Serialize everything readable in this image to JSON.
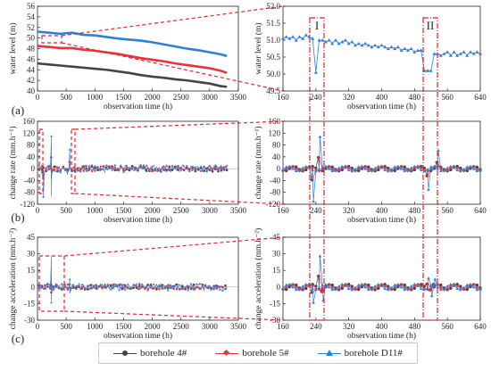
{
  "colors": {
    "borehole4": "#444444",
    "borehole5": "#e8323c",
    "boreholeD11": "#2f7fd8",
    "highlight": "#e0262c"
  },
  "legend": [
    {
      "label": "borehole 4#",
      "color": "#444444",
      "marker": "circle"
    },
    {
      "label": "borehole 5#",
      "color": "#e8323c",
      "marker": "diamond"
    },
    {
      "label": "borehole D11#",
      "color": "#2f7fd8",
      "marker": "triangle"
    }
  ],
  "panel_labels": [
    "(a)",
    "(b)",
    "(c)"
  ],
  "region_labels": [
    "I",
    "II"
  ],
  "chart_data": [
    {
      "id": "a-left",
      "type": "line",
      "xlabel": "observation time (h)",
      "ylabel": "water level (m)",
      "xlim": [
        0,
        3500
      ],
      "ylim": [
        40,
        56
      ],
      "xticks": [
        0,
        500,
        1000,
        1500,
        2000,
        2500,
        3000,
        3500
      ],
      "yticks": [
        40,
        42,
        44,
        46,
        48,
        50,
        52,
        54,
        56
      ],
      "series": [
        {
          "name": "borehole D11#",
          "x": [
            0,
            200,
            400,
            600,
            800,
            1000,
            1200,
            1400,
            1600,
            1800,
            2000,
            2200,
            2400,
            2600,
            2800,
            3000,
            3200,
            3300
          ],
          "values": [
            51.2,
            51.0,
            50.8,
            51.0,
            50.6,
            50.5,
            50.2,
            49.9,
            49.7,
            49.5,
            49.2,
            48.8,
            48.4,
            48.0,
            47.7,
            47.3,
            46.9,
            46.6
          ]
        },
        {
          "name": "borehole 5#",
          "x": [
            0,
            200,
            400,
            600,
            800,
            1000,
            1200,
            1400,
            1600,
            1800,
            2000,
            2200,
            2400,
            2600,
            2800,
            3000,
            3200,
            3300
          ],
          "values": [
            48.5,
            48.3,
            48.1,
            48.1,
            47.8,
            47.6,
            47.3,
            47.0,
            46.6,
            46.2,
            45.9,
            45.6,
            45.2,
            44.9,
            44.6,
            44.3,
            43.8,
            43.4
          ]
        },
        {
          "name": "borehole 4#",
          "x": [
            0,
            200,
            400,
            600,
            800,
            1000,
            1200,
            1400,
            1600,
            1800,
            2000,
            2200,
            2400,
            2600,
            2800,
            3000,
            3200,
            3300
          ],
          "values": [
            45.2,
            45.0,
            44.8,
            44.6,
            44.4,
            44.2,
            44.0,
            43.7,
            43.4,
            43.0,
            42.7,
            42.5,
            42.2,
            42.0,
            41.7,
            41.4,
            40.9,
            40.8
          ]
        }
      ]
    },
    {
      "id": "a-right",
      "type": "line",
      "xlabel": "observation time (h)",
      "ylabel": "water level (m)",
      "xlim": [
        160,
        640
      ],
      "ylim": [
        49.5,
        52.0
      ],
      "xticks": [
        160,
        240,
        320,
        400,
        480,
        560,
        640
      ],
      "yticks": [
        49.5,
        50.0,
        50.5,
        51.0,
        51.5,
        52.0
      ],
      "series": [
        {
          "name": "borehole D11#",
          "x": [
            160,
            168,
            176,
            184,
            192,
            200,
            208,
            216,
            224,
            232,
            240,
            248,
            256,
            264,
            272,
            280,
            288,
            296,
            304,
            312,
            320,
            328,
            336,
            344,
            352,
            360,
            368,
            376,
            384,
            392,
            400,
            408,
            416,
            424,
            432,
            440,
            448,
            456,
            464,
            472,
            480,
            488,
            496,
            504,
            512,
            520,
            528,
            536,
            544,
            552,
            560,
            568,
            576,
            584,
            592,
            600,
            608,
            616,
            624,
            632,
            640
          ],
          "values": [
            51.05,
            51.1,
            51.05,
            51.1,
            51.0,
            51.1,
            51.05,
            51.15,
            51.1,
            51.05,
            50.05,
            51.0,
            51.0,
            50.95,
            51.0,
            50.9,
            51.0,
            50.9,
            50.95,
            51.0,
            50.9,
            50.95,
            50.85,
            50.9,
            50.85,
            50.9,
            50.85,
            50.8,
            50.85,
            50.8,
            50.85,
            50.8,
            50.75,
            50.8,
            50.75,
            50.8,
            50.7,
            50.75,
            50.7,
            50.75,
            50.65,
            50.7,
            50.7,
            50.1,
            50.1,
            50.1,
            50.6,
            50.6,
            50.55,
            50.6,
            50.65,
            50.55,
            50.65,
            50.55,
            50.6,
            50.65,
            50.55,
            50.65,
            50.6,
            50.65,
            50.6
          ]
        }
      ]
    },
    {
      "id": "b-left",
      "type": "scatter",
      "xlabel": "observation time (h)",
      "ylabel": "change rate (mm.h⁻¹)",
      "xlim": [
        0,
        3500
      ],
      "ylim": [
        -120,
        160
      ],
      "xticks": [
        0,
        500,
        1000,
        1500,
        2000,
        2500,
        3000,
        3500
      ],
      "yticks": [
        -120,
        -80,
        -40,
        0,
        40,
        80,
        120,
        160
      ],
      "spikes": [
        {
          "x": 100,
          "value": -95
        },
        {
          "x": 240,
          "value": 110
        },
        {
          "x": 240,
          "value": -95
        },
        {
          "x": 520,
          "value": -20
        },
        {
          "x": 560,
          "value": 65
        }
      ],
      "noise_amplitude": 12
    },
    {
      "id": "b-right",
      "type": "line",
      "xlabel": "observation time (h)",
      "ylabel": "change rate (mm.h⁻¹)",
      "xlim": [
        160,
        640
      ],
      "ylim": [
        -120,
        160
      ],
      "xticks": [
        160,
        240,
        320,
        400,
        480,
        560,
        640
      ],
      "yticks": [
        -120,
        -80,
        -40,
        0,
        40,
        80,
        120,
        160
      ],
      "spikes": [
        {
          "x": 232,
          "value": -110
        },
        {
          "x": 248,
          "value": 108
        },
        {
          "x": 512,
          "value": -70
        },
        {
          "x": 536,
          "value": 62
        }
      ],
      "noise_amplitude": 8
    },
    {
      "id": "c-left",
      "type": "scatter",
      "xlabel": "observation time (h)",
      "ylabel": "change acceleration (mm.h⁻²)",
      "xlim": [
        0,
        3500
      ],
      "ylim": [
        -30,
        45
      ],
      "xticks": [
        0,
        500,
        1000,
        1500,
        2000,
        2500,
        3000,
        3500
      ],
      "yticks": [
        -30,
        -15,
        0,
        15,
        30,
        45
      ],
      "spikes": [
        {
          "x": 240,
          "value": 28
        },
        {
          "x": 240,
          "value": -14
        },
        {
          "x": 560,
          "value": 7
        },
        {
          "x": 560,
          "value": -6
        }
      ],
      "noise_amplitude": 3
    },
    {
      "id": "c-right",
      "type": "line",
      "xlabel": "observation time (h)",
      "ylabel": "change acceleration (mm.h⁻²)",
      "xlim": [
        160,
        640
      ],
      "ylim": [
        -30,
        45
      ],
      "xticks": [
        160,
        240,
        320,
        400,
        480,
        560,
        640
      ],
      "yticks": [
        -30,
        -15,
        0,
        15,
        30,
        45
      ],
      "spikes": [
        {
          "x": 232,
          "value": -14
        },
        {
          "x": 248,
          "value": 28
        },
        {
          "x": 256,
          "value": -12
        },
        {
          "x": 512,
          "value": 8
        },
        {
          "x": 528,
          "value": 7
        },
        {
          "x": 520,
          "value": -8
        }
      ],
      "noise_amplitude": 2.5
    }
  ]
}
